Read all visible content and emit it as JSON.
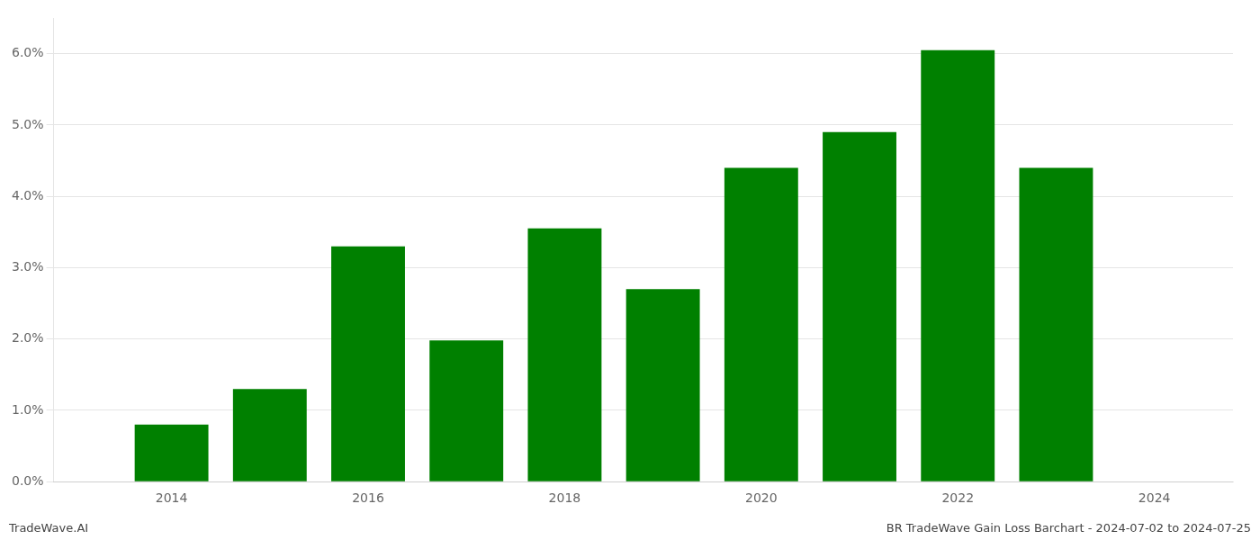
{
  "chart_data": {
    "type": "bar",
    "x": [
      2014,
      2015,
      2016,
      2017,
      2018,
      2019,
      2020,
      2021,
      2022,
      2023
    ],
    "values": [
      0.008,
      0.013,
      0.033,
      0.0198,
      0.0355,
      0.027,
      0.044,
      0.049,
      0.0605,
      0.044
    ],
    "color": "#008000",
    "xlim": [
      2012.8,
      2024.8
    ],
    "xticks": [
      2014,
      2016,
      2018,
      2020,
      2022,
      2024
    ],
    "ylim": [
      0.0,
      0.065
    ],
    "yticks": [
      {
        "value": 0.0,
        "label": "0.0%"
      },
      {
        "value": 0.01,
        "label": "1.0%"
      },
      {
        "value": 0.02,
        "label": "2.0%"
      },
      {
        "value": 0.03,
        "label": "3.0%"
      },
      {
        "value": 0.04,
        "label": "4.0%"
      },
      {
        "value": 0.05,
        "label": "5.0%"
      },
      {
        "value": 0.06,
        "label": "6.0%"
      }
    ],
    "grid": true,
    "annotations": [
      "TradeWave.AI",
      "BR TradeWave Gain Loss Barchart - 2024-07-02 to 2024-07-25"
    ]
  }
}
